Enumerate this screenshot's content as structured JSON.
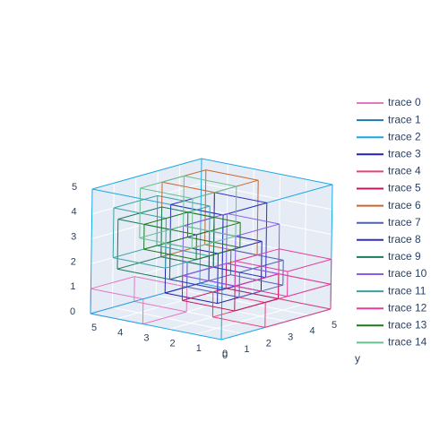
{
  "chart_data": {
    "type": "line3d",
    "title": "",
    "axes": {
      "x": {
        "ticks": [
          "0",
          "1",
          "2",
          "3",
          "4",
          "5"
        ],
        "range": [
          0,
          5
        ],
        "title": ""
      },
      "y": {
        "ticks": [
          "0",
          "1",
          "2",
          "3",
          "4",
          "5"
        ],
        "range": [
          0,
          5
        ],
        "title": "y"
      },
      "z": {
        "ticks": [
          "0",
          "1",
          "2",
          "3",
          "4",
          "5"
        ],
        "range": [
          0,
          5
        ],
        "title": ""
      }
    },
    "scene_background": "#e5ecf6",
    "grid": true,
    "legend_position": "right",
    "series": [
      {
        "name": "trace 0",
        "color": "#e377c2",
        "boxes": [
          [
            [
              3,
              0,
              0
            ],
            [
              5,
              2,
              1
            ]
          ]
        ]
      },
      {
        "name": "trace 1",
        "color": "#1f77b4",
        "boxes": []
      },
      {
        "name": "trace 2",
        "color": "#17a8e6",
        "boxes": [
          [
            [
              0,
              0,
              0
            ],
            [
              5,
              5,
              5
            ]
          ]
        ]
      },
      {
        "name": "trace 3",
        "color": "#2222aa",
        "boxes": [
          [
            [
              1,
              1,
              1
            ],
            [
              3,
              3,
              3
            ]
          ]
        ]
      },
      {
        "name": "trace 4",
        "color": "#e5417a",
        "boxes": [
          [
            [
              0,
              2,
              0
            ],
            [
              2,
              5,
              1
            ]
          ]
        ]
      },
      {
        "name": "trace 5",
        "color": "#c2185b",
        "boxes": [
          [
            [
              2,
              3,
              0
            ],
            [
              4,
              5,
              1
            ]
          ]
        ]
      },
      {
        "name": "trace 6",
        "color": "#c9662f",
        "boxes": [
          [
            [
              2,
              2,
              2
            ],
            [
              4,
              4,
              5
            ]
          ]
        ]
      },
      {
        "name": "trace 7",
        "color": "#5060b0",
        "boxes": [
          [
            [
              1,
              2,
              1
            ],
            [
              3,
              4,
              2
            ]
          ]
        ]
      },
      {
        "name": "trace 8",
        "color": "#3030c0",
        "boxes": [
          [
            [
              0,
              0,
              2
            ],
            [
              2,
              2,
              5
            ]
          ]
        ]
      },
      {
        "name": "trace 9",
        "color": "#1a7a5a",
        "boxes": [
          [
            [
              2,
              0,
              2
            ],
            [
              4,
              2,
              4
            ]
          ]
        ]
      },
      {
        "name": "trace 10",
        "color": "#8a5cf0",
        "boxes": [
          [
            [
              2,
              3,
              1
            ],
            [
              4,
              5,
              3
            ]
          ]
        ]
      },
      {
        "name": "trace 11",
        "color": "#3aa0a0",
        "boxes": [
          [
            [
              3,
              1,
              2
            ],
            [
              5,
              3,
              4
            ]
          ]
        ]
      },
      {
        "name": "trace 12",
        "color": "#e0409a",
        "boxes": [
          [
            [
              0,
              3,
              1
            ],
            [
              2,
              5,
              2
            ]
          ]
        ]
      },
      {
        "name": "trace 13",
        "color": "#1a7a1a",
        "boxes": [
          [
            [
              1,
              0,
              3
            ],
            [
              3,
              2,
              4
            ]
          ]
        ]
      },
      {
        "name": "trace 14",
        "color": "#6abf8f",
        "boxes": [
          [
            [
              2,
              1,
              3
            ],
            [
              4,
              3,
              5
            ]
          ]
        ]
      }
    ]
  }
}
